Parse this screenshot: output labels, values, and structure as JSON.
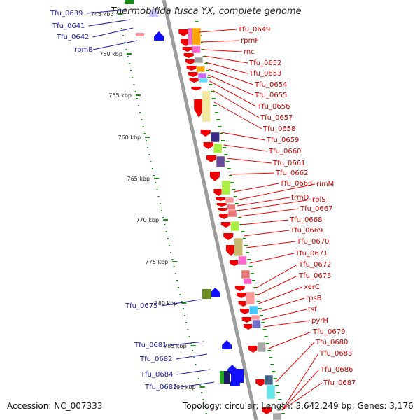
{
  "title": "Thermobifida fusca YX, complete genome",
  "accession": "Accession: NC_007333",
  "topology": "Topology: circular; Length: 3,642,249 bp; Genes: 3,176",
  "colors": {
    "forward": "#ee0000",
    "reverse": "#1010ff",
    "backbone": "#9c9c9c",
    "ticks": "#1a8a1a",
    "label_right": "#cc0000",
    "label_left": "#1a1aa0"
  },
  "ticks": [
    "745 kbp",
    "750 kbp",
    "755 kbp",
    "760 kbp",
    "765 kbp",
    "770 kbp",
    "775 kbp",
    "780 kbp",
    "785 kbp",
    "790 kbp"
  ],
  "labels_left": [
    "Tfu_0639",
    "Tfu_0641",
    "Tfu_0642",
    "rpmB",
    "Tfu_0675",
    "Tfu_0681",
    "Tfu_0682",
    "Tfu_0684",
    "Tfu_0685"
  ],
  "labels_right": [
    "Tfu_0649",
    "rpmF",
    "rnc",
    "Tfu_0652",
    "Tfu_0653",
    "Tfu_0654",
    "Tfu_0655",
    "Tfu_0656",
    "Tfu_0657",
    "Tfu_0658",
    "Tfu_0659",
    "Tfu_0660",
    "Tfu_0661",
    "Tfu_0662",
    "Tfu_0663",
    "rimM",
    "trmD",
    "rplS",
    "Tfu_0667",
    "Tfu_0668",
    "Tfu_0669",
    "Tfu_0670",
    "Tfu_0671",
    "Tfu_0672",
    "Tfu_0673",
    "xerC",
    "rpsB",
    "tsf",
    "pyrH",
    "Tfu_0679",
    "Tfu_0680",
    "Tfu_0683",
    "Tfu_0686",
    "Tfu_0687"
  ]
}
